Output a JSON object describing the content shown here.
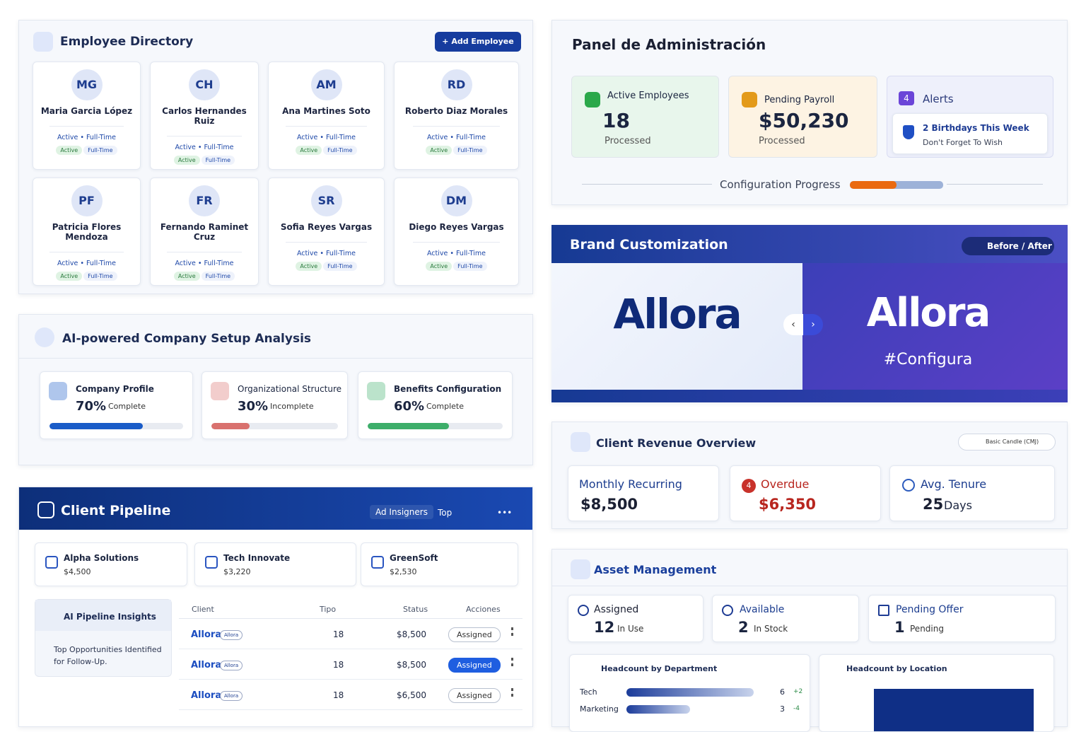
{
  "employee_directory": {
    "title": "Employee Directory",
    "add_button": "Add Employee",
    "employees": [
      {
        "initials": "MG",
        "name": "Maria Garcia López",
        "status": "Active • Full-Time",
        "badges": [
          "Active",
          "Full-Time"
        ]
      },
      {
        "initials": "CH",
        "name": "Carlos Hernandes Ruiz",
        "status": "Active • Full-Time",
        "badges": [
          "Active",
          "Full-Time"
        ]
      },
      {
        "initials": "AM",
        "name": "Ana Martines Soto",
        "status": "Active • Full-Time",
        "badges": [
          "Active",
          "Full-Time"
        ]
      },
      {
        "initials": "RD",
        "name": "Roberto Diaz Morales",
        "status": "Active • Full-Time",
        "badges": [
          "Active",
          "Full-Time"
        ]
      },
      {
        "initials": "PF",
        "name": "Patricia Flores Mendoza",
        "status": "Active • Full-Time",
        "badges": [
          "Active",
          "Full-Time"
        ]
      },
      {
        "initials": "FR",
        "name": "Fernando Raminet Cruz",
        "status": "Active • Full-Time",
        "badges": [
          "Active",
          "Full-Time"
        ]
      },
      {
        "initials": "SR",
        "name": "Sofia Reyes Vargas",
        "status": "Active • Full-Time",
        "badges": [
          "Active",
          "Full-Time"
        ]
      },
      {
        "initials": "DM",
        "name": "Diego Reyes Vargas",
        "status": "Active • Full-Time",
        "badges": [
          "Active",
          "Full-Time"
        ]
      }
    ]
  },
  "setup_analysis": {
    "title": "AI-powered Company Setup Analysis",
    "items": [
      {
        "title": "Company Profile",
        "progress": 70,
        "progress_label": "70%",
        "status": "Complete",
        "color": "#1a5cc8"
      },
      {
        "title": "Organizational Structure",
        "progress": 30,
        "progress_label": "30%",
        "status": "Incomplete",
        "color": "#d9716e"
      },
      {
        "title": "Benefits Configuration",
        "progress": 60,
        "progress_label": "60%",
        "status": "Complete",
        "color": "#3dae6a"
      }
    ]
  },
  "client_pipeline": {
    "title": "Client Pipeline",
    "actions": [
      "Ad Insigners",
      "Top",
      "•••"
    ],
    "clients": [
      {
        "name": "Alpha Solutions",
        "amount": "$4,500"
      },
      {
        "name": "Tech Innovate",
        "amount": "$3,220"
      },
      {
        "name": "GreenSoft",
        "amount": "$2,530"
      }
    ],
    "insights": {
      "title": "AI Pipeline Insights",
      "text": "Top Opportunities Identified for Follow-Up."
    },
    "table": {
      "headers": [
        "Client",
        "Tipo",
        "Status",
        "Acciones"
      ],
      "rows": [
        {
          "client": "Allora",
          "tag": "Allora",
          "tipo": "18",
          "status": "$8,500",
          "action": "Assigned"
        },
        {
          "client": "Allora",
          "tag": "Allora",
          "tipo": "18",
          "status": "$8,500",
          "action": "Assigned"
        },
        {
          "client": "Allora",
          "tag": "Allora",
          "tipo": "18",
          "status": "$6,500",
          "action": "Assigned"
        }
      ]
    }
  },
  "admin_panel": {
    "title": "Panel de Administración",
    "cards": [
      {
        "title": "Active Employees",
        "value": "18",
        "note": "Processed"
      },
      {
        "title": "Pending Payroll",
        "value": "$50,230",
        "note": "Processed"
      }
    ],
    "alerts": {
      "title": "Alerts",
      "count": "4",
      "item_title": "2 Birthdays This Week",
      "item_text": "Don't Forget To Wish"
    },
    "config_progress": {
      "label": "Configuration Progress",
      "value": 50
    }
  },
  "brand": {
    "title": "Brand Customization",
    "toggle": "Before / After",
    "before_logo": "Allora",
    "after_logo": "Allora",
    "after_tagline": "#Configura"
  },
  "revenue": {
    "title": "Client Revenue Overview",
    "filter": "Basic Candle (CMJ)",
    "cards": [
      {
        "label": "Monthly Recurring",
        "value": "$8,500"
      },
      {
        "badge": "4",
        "label": "Overdue",
        "value": "$6,350"
      },
      {
        "label": "Avg. Tenure",
        "value": "25",
        "unit": "Days"
      }
    ]
  },
  "assets": {
    "title": "Asset Management",
    "cards": [
      {
        "label": "Assigned",
        "value": "12",
        "note": "In Use"
      },
      {
        "label": "Available",
        "value": "2",
        "note": "In Stock"
      },
      {
        "label": "Pending Offer",
        "value": "1",
        "note": "Pending"
      }
    ],
    "department": {
      "title": "Headcount by Department",
      "rows": [
        {
          "name": "Tech",
          "value": 6,
          "change": "+2"
        },
        {
          "name": "Marketing",
          "value": 3,
          "change": "-4"
        }
      ]
    },
    "location": {
      "title": "Headcount by Location"
    }
  }
}
